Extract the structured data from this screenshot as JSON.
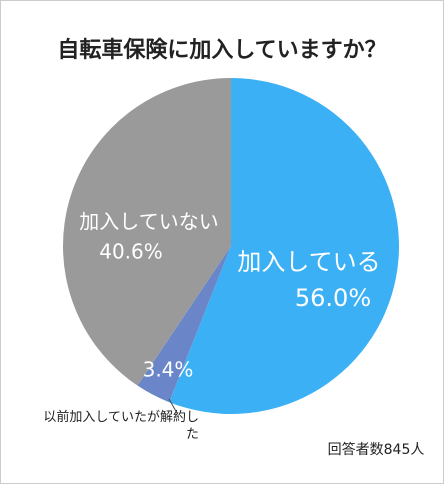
{
  "chart_data": {
    "type": "pie",
    "title": "自転車保険に加入していますか？",
    "categories": [
      "加入している",
      "以前加入していたが解約した",
      "加入していない"
    ],
    "values": [
      56.0,
      3.4,
      40.6
    ],
    "value_labels": [
      "56.0%",
      "3.4%",
      "40.6%"
    ],
    "colors": [
      "#3bb0f5",
      "#6a86c8",
      "#9a9a9a"
    ],
    "note": "回答者数845人"
  }
}
